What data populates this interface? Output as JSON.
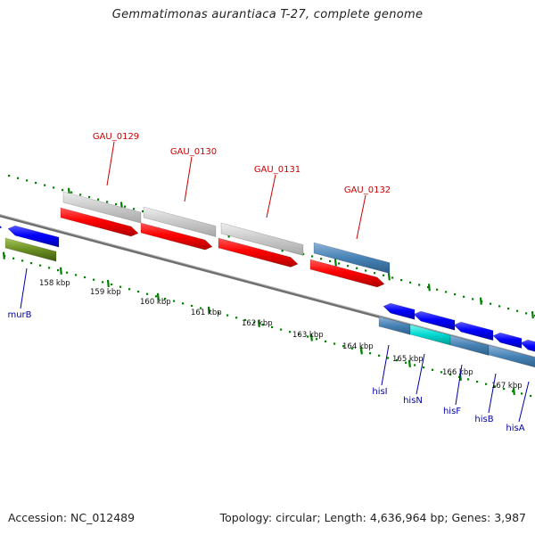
{
  "header": {
    "title": "Gemmatimonas aurantiaca T-27, complete genome"
  },
  "footer": {
    "accession": "Accession: NC_012489",
    "topology": "Topology: circular; Length: 4,636,964 bp; Genes: 3,987"
  },
  "map": {
    "kbp_labels": [
      "158 kbp",
      "159 kbp",
      "160 kbp",
      "161 kbp",
      "162 kbp",
      "163 kbp",
      "164 kbp",
      "165 kbp",
      "166 kbp",
      "167 kbp"
    ],
    "top_gene_labels": [
      "GAU_0129",
      "GAU_0130",
      "GAU_0131",
      "GAU_0132"
    ],
    "bottom_gene_labels": [
      "murB",
      "hisI",
      "hisN",
      "hisF",
      "hisB",
      "hisA"
    ],
    "colors": {
      "gray_bar": "#c8c8c8",
      "red_gene": "#ff0000",
      "steel_blue": "#4682b4",
      "blue_gene": "#0000ff",
      "olive_gene": "#6b8e23",
      "cyan_gene": "#00ced1",
      "backbone": "#808080",
      "tick_green": "#008000",
      "red_label": "#cc0000",
      "blue_label": "#0000aa"
    }
  }
}
